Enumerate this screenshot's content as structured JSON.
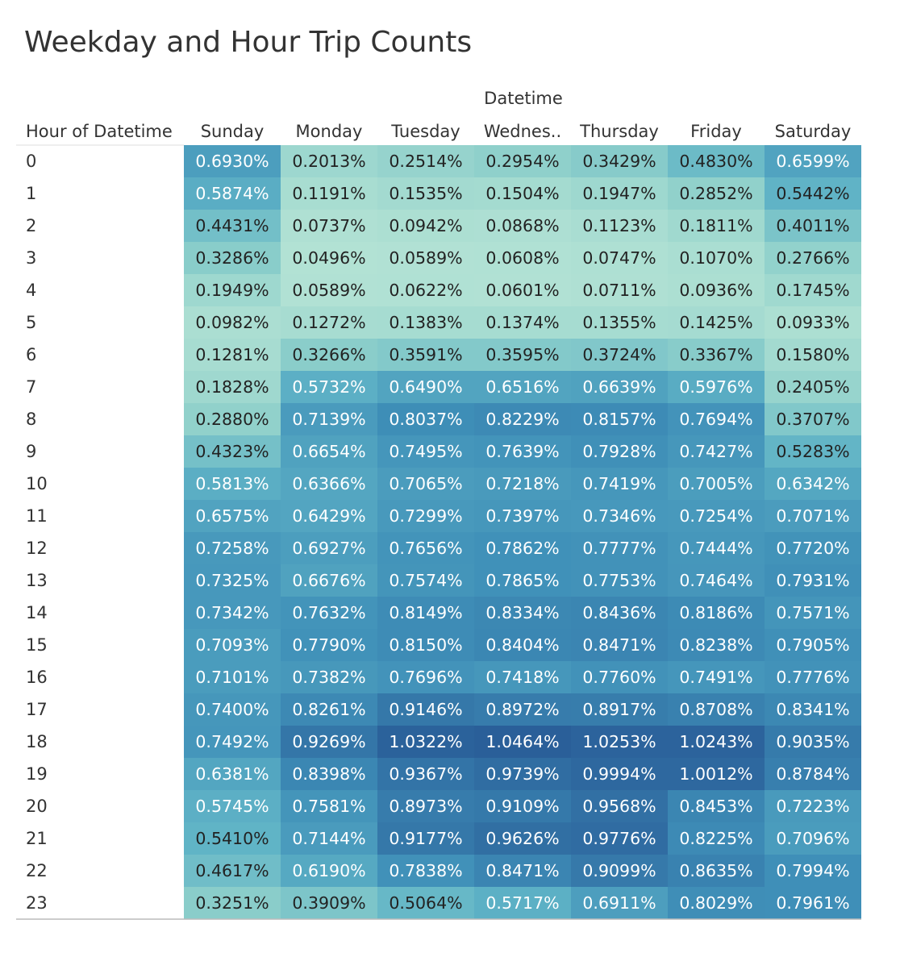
{
  "chart_data": {
    "type": "heatmap",
    "title": "Weekday and Hour Trip Counts",
    "column_group_label": "Datetime",
    "row_header_label": "Hour of Datetime",
    "columns": [
      "Sunday",
      "Monday",
      "Tuesday",
      "Wednes..",
      "Thursday",
      "Friday",
      "Saturday"
    ],
    "rows": [
      "0",
      "1",
      "2",
      "3",
      "4",
      "5",
      "6",
      "7",
      "8",
      "9",
      "10",
      "11",
      "12",
      "13",
      "14",
      "15",
      "16",
      "17",
      "18",
      "19",
      "20",
      "21",
      "22",
      "23"
    ],
    "unit": "%",
    "values": [
      [
        "0.6930%",
        "0.2013%",
        "0.2514%",
        "0.2954%",
        "0.3429%",
        "0.4830%",
        "0.6599%"
      ],
      [
        "0.5874%",
        "0.1191%",
        "0.1535%",
        "0.1504%",
        "0.1947%",
        "0.2852%",
        "0.5442%"
      ],
      [
        "0.4431%",
        "0.0737%",
        "0.0942%",
        "0.0868%",
        "0.1123%",
        "0.1811%",
        "0.4011%"
      ],
      [
        "0.3286%",
        "0.0496%",
        "0.0589%",
        "0.0608%",
        "0.0747%",
        "0.1070%",
        "0.2766%"
      ],
      [
        "0.1949%",
        "0.0589%",
        "0.0622%",
        "0.0601%",
        "0.0711%",
        "0.0936%",
        "0.1745%"
      ],
      [
        "0.0982%",
        "0.1272%",
        "0.1383%",
        "0.1374%",
        "0.1355%",
        "0.1425%",
        "0.0933%"
      ],
      [
        "0.1281%",
        "0.3266%",
        "0.3591%",
        "0.3595%",
        "0.3724%",
        "0.3367%",
        "0.1580%"
      ],
      [
        "0.1828%",
        "0.5732%",
        "0.6490%",
        "0.6516%",
        "0.6639%",
        "0.5976%",
        "0.2405%"
      ],
      [
        "0.2880%",
        "0.7139%",
        "0.8037%",
        "0.8229%",
        "0.8157%",
        "0.7694%",
        "0.3707%"
      ],
      [
        "0.4323%",
        "0.6654%",
        "0.7495%",
        "0.7639%",
        "0.7928%",
        "0.7427%",
        "0.5283%"
      ],
      [
        "0.5813%",
        "0.6366%",
        "0.7065%",
        "0.7218%",
        "0.7419%",
        "0.7005%",
        "0.6342%"
      ],
      [
        "0.6575%",
        "0.6429%",
        "0.7299%",
        "0.7397%",
        "0.7346%",
        "0.7254%",
        "0.7071%"
      ],
      [
        "0.7258%",
        "0.6927%",
        "0.7656%",
        "0.7862%",
        "0.7777%",
        "0.7444%",
        "0.7720%"
      ],
      [
        "0.7325%",
        "0.6676%",
        "0.7574%",
        "0.7865%",
        "0.7753%",
        "0.7464%",
        "0.7931%"
      ],
      [
        "0.7342%",
        "0.7632%",
        "0.8149%",
        "0.8334%",
        "0.8436%",
        "0.8186%",
        "0.7571%"
      ],
      [
        "0.7093%",
        "0.7790%",
        "0.8150%",
        "0.8404%",
        "0.8471%",
        "0.8238%",
        "0.7905%"
      ],
      [
        "0.7101%",
        "0.7382%",
        "0.7696%",
        "0.7418%",
        "0.7760%",
        "0.7491%",
        "0.7776%"
      ],
      [
        "0.7400%",
        "0.8261%",
        "0.9146%",
        "0.8972%",
        "0.8917%",
        "0.8708%",
        "0.8341%"
      ],
      [
        "0.7492%",
        "0.9269%",
        "1.0322%",
        "1.0464%",
        "1.0253%",
        "1.0243%",
        "0.9035%"
      ],
      [
        "0.6381%",
        "0.8398%",
        "0.9367%",
        "0.9739%",
        "0.9994%",
        "1.0012%",
        "0.8784%"
      ],
      [
        "0.5745%",
        "0.7581%",
        "0.8973%",
        "0.9109%",
        "0.9568%",
        "0.8453%",
        "0.7223%"
      ],
      [
        "0.5410%",
        "0.7144%",
        "0.9177%",
        "0.9626%",
        "0.9776%",
        "0.8225%",
        "0.7096%"
      ],
      [
        "0.4617%",
        "0.6190%",
        "0.7838%",
        "0.8471%",
        "0.9099%",
        "0.8635%",
        "0.7994%"
      ],
      [
        "0.3251%",
        "0.3909%",
        "0.5064%",
        "0.5717%",
        "0.6911%",
        "0.8029%",
        "0.7961%"
      ]
    ],
    "color_scale": [
      "#b2e2d4",
      "#8fd0cb",
      "#5fb3c6",
      "#3f8fb8",
      "#2a5f99"
    ],
    "text_colors": {
      "light_cells": "#222222",
      "dark_cells": "#ffffff"
    }
  }
}
